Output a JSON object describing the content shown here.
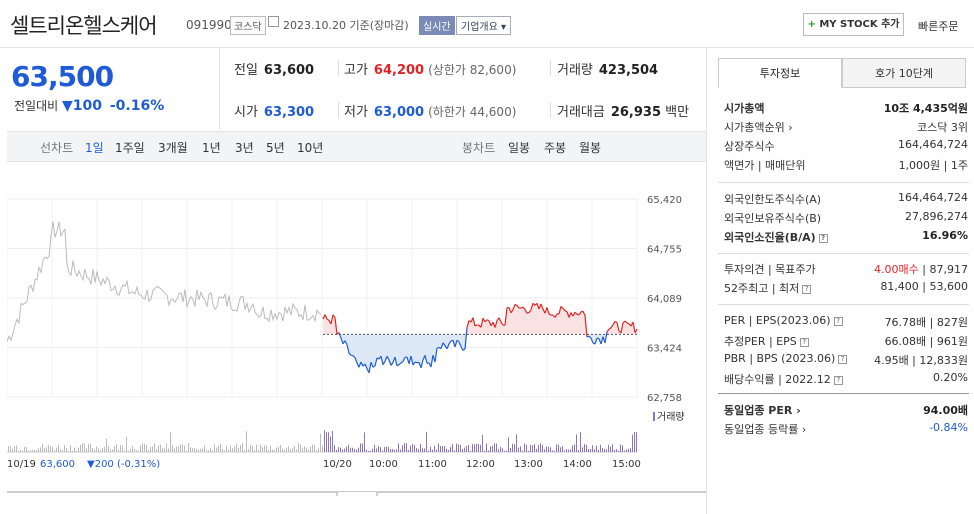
{
  "header": {
    "stock_name": "셀트리온헬스케어",
    "code": "091990",
    "market": "코스닥",
    "date": "2023.10.20",
    "basis": "기준(장마감)",
    "realtime": "실시간",
    "corp_info": "기업개요",
    "my_stock": "MY STOCK 추가",
    "quick_order": "빠른주문"
  },
  "price": {
    "current": "63,500",
    "change_label": "전일대비",
    "change_value": "100",
    "change_pct": "-0.16%"
  },
  "stats": {
    "prev_label": "전일",
    "prev": "63,600",
    "high_label": "고가",
    "high": "64,200",
    "upper_limit": "(상한가 82,600)",
    "volume_label": "거래량",
    "volume": "423,504",
    "open_label": "시가",
    "open": "63,300",
    "low_label": "저가",
    "low": "63,000",
    "lower_limit": "(하한가 44,600)",
    "amount_label": "거래대금",
    "amount": "26,935",
    "amount_unit": "백만"
  },
  "period_bar": {
    "line_label": "선차트",
    "line_items": [
      "1일",
      "1주일",
      "3개월",
      "1년",
      "3년",
      "5년",
      "10년"
    ],
    "candle_label": "봉차트",
    "candle_items": [
      "일봉",
      "주봉",
      "월봉"
    ]
  },
  "chart_data": {
    "type": "line",
    "y_ticks": [
      "65,420",
      "64,755",
      "64,089",
      "63,424",
      "62,758"
    ],
    "ylim": [
      62758,
      65420
    ],
    "baseline": 63600,
    "volume_label": "거래량",
    "x_ticks": [
      "10/19",
      "10/20",
      "10:00",
      "11:00",
      "12:00",
      "13:00",
      "14:00",
      "15:00"
    ],
    "prev_day_price": "63,600",
    "prev_day_change": "200",
    "prev_day_pct": "(-0.31%)",
    "colors": {
      "up": "#e02424",
      "down": "#1f5bd6",
      "prev": "#bbbbbb"
    }
  },
  "panel": {
    "tab_info": "투자정보",
    "tab_quote": "호가 10단계",
    "rows_a": [
      {
        "k": "시가총액",
        "v": "10조 4,435억원"
      },
      {
        "k": "시가총액순위",
        "v": "코스닥 3위"
      },
      {
        "k": "상장주식수",
        "v": "164,464,724"
      },
      {
        "k": "액면가 | 매매단위",
        "v": "1,000원 | 1주"
      }
    ],
    "rows_b": [
      {
        "k": "외국인한도주식수(A)",
        "v": "164,464,724"
      },
      {
        "k": "외국인보유주식수(B)",
        "v": "27,896,274"
      },
      {
        "k": "외국인소진율(B/A)",
        "v": "16.96%"
      }
    ],
    "rows_c": [
      {
        "k": "투자의견 | 목표주가",
        "v1": "4.00매수",
        "v2": " | 87,917"
      },
      {
        "k": "52주최고 | 최저",
        "v": "81,400 | 53,600"
      }
    ],
    "rows_d": [
      {
        "k": "PER | EPS(2023.06)",
        "v": "76.78배 | 827원"
      },
      {
        "k": "추정PER | EPS",
        "v": "66.08배 | 961원"
      },
      {
        "k": "PBR | BPS (2023.06)",
        "v": "4.95배 | 12,833원"
      },
      {
        "k": "배당수익률 | 2022.12",
        "v": "0.20%"
      }
    ],
    "rows_e": [
      {
        "k": "동일업종 PER",
        "v": "94.00배"
      },
      {
        "k": "동일업종 등락률",
        "v": "-0.84%"
      }
    ]
  }
}
